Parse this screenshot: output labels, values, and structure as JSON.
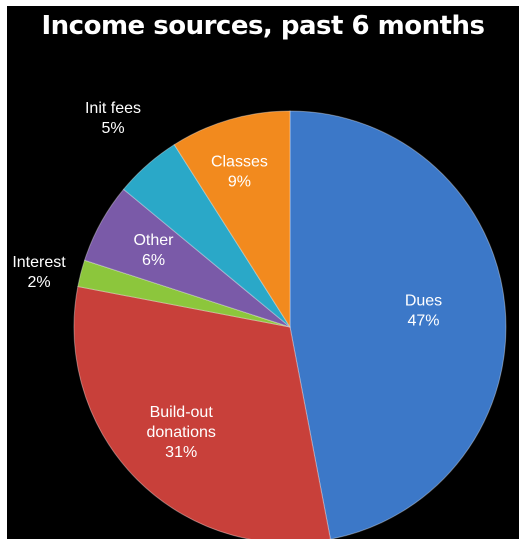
{
  "chart_data": {
    "type": "pie",
    "title": "Income sources, past 6 months",
    "start_angle_deg": 0,
    "direction": "clockwise",
    "slices": [
      {
        "label": "Dues",
        "percent_label": "47%",
        "value": 47,
        "color": "#3c78c8"
      },
      {
        "label": "Build-out donations",
        "label_lines": [
          "Build-out",
          "donations"
        ],
        "percent_label": "31%",
        "value": 31,
        "color": "#c8403a"
      },
      {
        "label": "Interest",
        "percent_label": "2%",
        "value": 2,
        "color": "#8cc63c"
      },
      {
        "label": "Other",
        "percent_label": "6%",
        "value": 6,
        "color": "#7a5aa8"
      },
      {
        "label": "Init fees",
        "percent_label": "5%",
        "value": 5,
        "color": "#2aa8c8"
      },
      {
        "label": "Classes",
        "percent_label": "9%",
        "value": 9,
        "color": "#f28a1e"
      }
    ],
    "legend": "none"
  }
}
